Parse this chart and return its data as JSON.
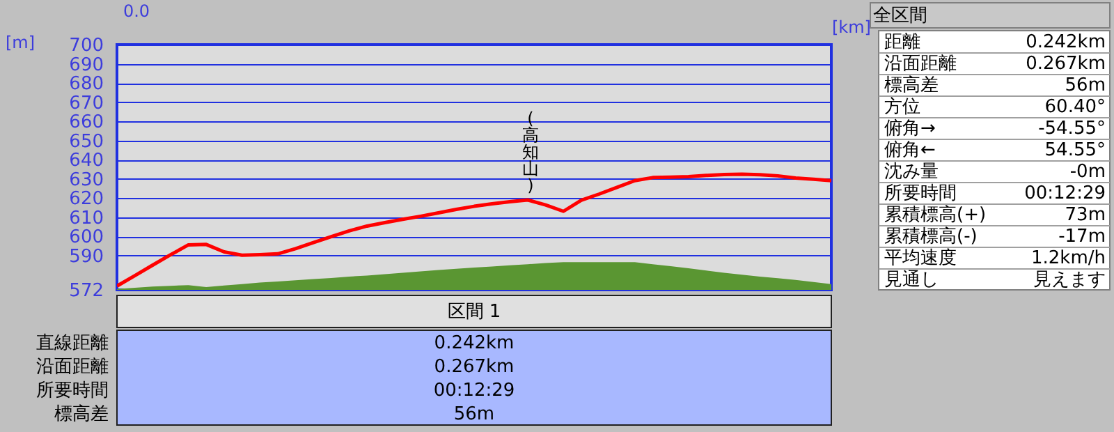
{
  "chart_data": {
    "type": "line",
    "xlabel": "[km]",
    "ylabel": "[m]",
    "ylim": [
      572,
      700
    ],
    "yticks": [
      572,
      590,
      600,
      610,
      620,
      630,
      640,
      650,
      660,
      670,
      680,
      690,
      700
    ],
    "grid": "y",
    "categories": [
      null,
      null,
      null,
      null,
      null,
      null,
      null,
      null,
      null,
      null,
      null,
      null,
      null,
      null,
      null,
      null,
      null,
      null,
      null,
      null,
      null,
      null,
      null,
      null,
      null,
      null,
      null,
      null,
      null,
      null,
      null,
      null,
      null,
      null,
      null,
      null,
      null,
      null,
      null,
      null,
      null
    ],
    "series": [
      {
        "type": "area",
        "color": "#5a9632",
        "values": [
          572.5,
          573.1,
          573.7,
          574.1,
          574.5,
          573.5,
          574.3,
          575,
          575.8,
          576.4,
          577,
          577.6,
          578.2,
          578.9,
          579.5,
          580.2,
          580.9,
          581.6,
          582.4,
          583,
          583.6,
          584.2,
          584.8,
          585.4,
          586,
          586.5,
          586.5,
          586.5,
          586.5,
          586.5,
          585.4,
          584.4,
          583.3,
          582.1,
          580.9,
          579.9,
          578.9,
          578.1,
          577.2,
          576.1,
          575
        ]
      },
      {
        "color": "#ff0000",
        "values": [
          574,
          579.4,
          584.9,
          590.3,
          595.5,
          595.7,
          591.8,
          590.1,
          590.4,
          590.8,
          593.5,
          596.7,
          599.8,
          602.8,
          605.3,
          607.1,
          608.8,
          610.4,
          612.2,
          614,
          615.6,
          616.9,
          618,
          618.9,
          616.3,
          613,
          618.8,
          622,
          625.5,
          629,
          630.6,
          630.8,
          631.1,
          631.7,
          632.2,
          632.4,
          632.1,
          631.5,
          630.4,
          629.7,
          629
        ]
      }
    ],
    "annotations": [
      "(高知山)",
      "0.0",
      "全区間",
      "距離",
      "0.242km",
      "沿面距離",
      "0.267km",
      "標高差",
      "56m",
      "方位",
      "60.40°",
      "俯角→",
      "-54.55°",
      "俯角←",
      "54.55°",
      "沈み量",
      "-0m",
      "所要時間",
      "00:12:29",
      "累積標高(+)",
      "73m",
      "累積標高(-)",
      "-17m",
      "平均速度",
      "1.2km/h",
      "見通し",
      "見えます",
      "区間 1",
      "直線距離",
      "0.242km",
      "沿面距離",
      "0.267km",
      "所要時間",
      "00:12:29",
      "標高差",
      "56m"
    ]
  }
}
